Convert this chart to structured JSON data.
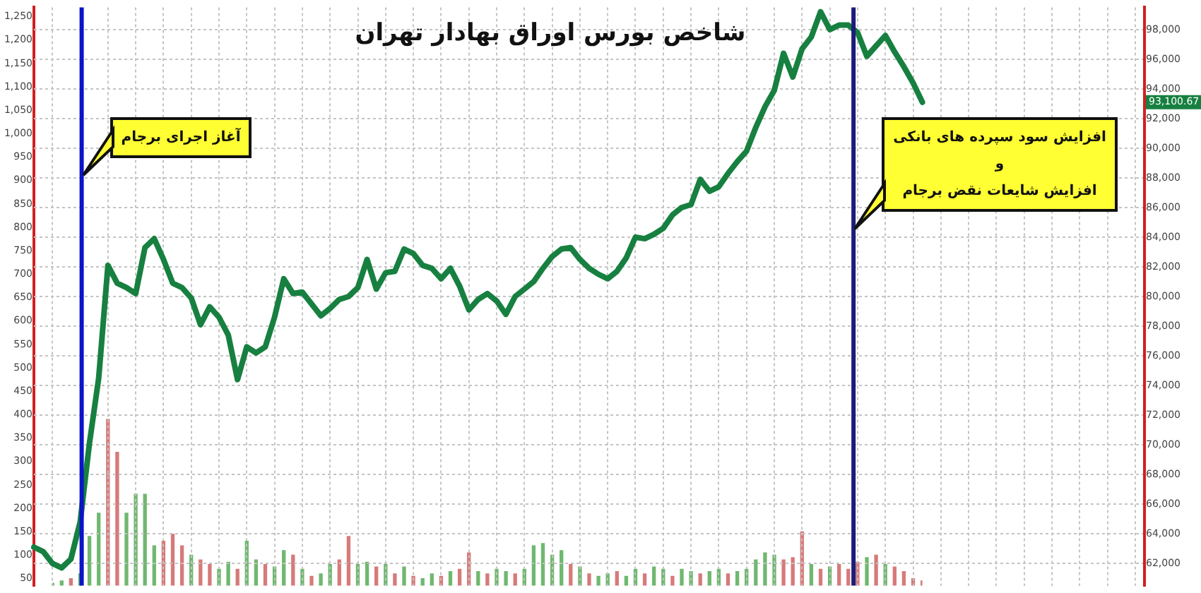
{
  "chart_data": [
    {
      "type": "line",
      "title": "شاخص بورس اوراق بهادار تهران",
      "categories": [
        null,
        null,
        null,
        null,
        null,
        null,
        null,
        null,
        null,
        null,
        null,
        null,
        null,
        null,
        null,
        null,
        null,
        null,
        null,
        null,
        null,
        null,
        null,
        null,
        null,
        null,
        null,
        null,
        null,
        null,
        null,
        null,
        null,
        null,
        null,
        null,
        null,
        null,
        null,
        null,
        null,
        null,
        null,
        null,
        null,
        null,
        null,
        null,
        null,
        null,
        null,
        null,
        null,
        null,
        null,
        null,
        null,
        null,
        null,
        null,
        null,
        null,
        null,
        null,
        null,
        null,
        null,
        null,
        null,
        null,
        null,
        null,
        null,
        null,
        null,
        null,
        null,
        null,
        null,
        null,
        null,
        null,
        null,
        null,
        null,
        null,
        null,
        null,
        null,
        null,
        null,
        null,
        null,
        null,
        null,
        null,
        null,
        null,
        null,
        null,
        null,
        null,
        null,
        null,
        null,
        null,
        null,
        null,
        null,
        null,
        null,
        null,
        null,
        null,
        null,
        null,
        null,
        null,
        null,
        null,
        null
      ],
      "ylim": [
        60500,
        99500
      ],
      "yticks": [
        {
          "value": 62000,
          "label": "62,000"
        },
        {
          "value": 64000,
          "label": "64,000"
        },
        {
          "value": 66000,
          "label": "66,000"
        },
        {
          "value": 68000,
          "label": "68,000"
        },
        {
          "value": 70000,
          "label": "70,000"
        },
        {
          "value": 72000,
          "label": "72,000"
        },
        {
          "value": 74000,
          "label": "74,000"
        },
        {
          "value": 76000,
          "label": "76,000"
        },
        {
          "value": 78000,
          "label": "78,000"
        },
        {
          "value": 80000,
          "label": "80,000"
        },
        {
          "value": 82000,
          "label": "82,000"
        },
        {
          "value": 84000,
          "label": "84,000"
        },
        {
          "value": 86000,
          "label": "86,000"
        },
        {
          "value": 88000,
          "label": "88,000"
        },
        {
          "value": 90000,
          "label": "90,000"
        },
        {
          "value": 92000,
          "label": "92,000"
        },
        {
          "value": 94000,
          "label": "94,000"
        },
        {
          "value": 96000,
          "label": "96,000"
        },
        {
          "value": 98000,
          "label": "98,000"
        }
      ],
      "tick_labels": "y",
      "grid": true,
      "series": [
        {
          "color": "#178040",
          "values": [
            63100,
            62800,
            62000,
            61700,
            62300,
            64800,
            70100,
            74500,
            82100,
            80900,
            80600,
            80200,
            83300,
            83900,
            82500,
            80900,
            80600,
            79900,
            78100,
            79300,
            78600,
            77400,
            74400,
            76600,
            76200,
            76600,
            78600,
            81200,
            80200,
            80300,
            79500,
            78700,
            79200,
            79800,
            80000,
            80600,
            82500,
            80500,
            81600,
            81700,
            83200,
            82900,
            82100,
            81900,
            81200,
            81900,
            80700,
            79100,
            79800,
            80200,
            79700,
            78800,
            80000,
            80500,
            81000,
            81900,
            82700,
            83200,
            83300,
            82500,
            81900,
            81500,
            81200,
            81700,
            82600,
            84000,
            83900,
            84200,
            84600,
            85500,
            86000,
            86200,
            87900,
            87100,
            87400,
            88300,
            89100,
            89800,
            91400,
            92800,
            93900,
            96400,
            94800,
            96700,
            97500,
            99200,
            98000,
            98300,
            98300,
            97800,
            96200,
            96900,
            97600,
            96500,
            95500,
            94400,
            93100,
            null,
            null,
            null,
            null,
            null,
            null,
            null,
            null,
            null,
            null,
            null,
            null,
            null,
            null,
            null,
            null,
            null,
            null,
            null,
            null,
            null,
            null,
            null,
            null
          ]
        }
      ],
      "annotations": [
        "آغاز اجرای برجام",
        "افزایش سود سپرده های بانکی\nو\nافزایش شایعات نقض برجام",
        "93,100.67"
      ]
    },
    {
      "type": "bar",
      "categories": [
        null,
        null,
        null,
        null,
        null,
        null,
        null,
        null,
        null,
        null,
        null,
        null,
        null,
        null,
        null,
        null,
        null,
        null,
        null,
        null,
        null,
        null,
        null,
        null,
        null,
        null,
        null,
        null,
        null,
        null,
        null,
        null,
        null,
        null,
        null,
        null,
        null,
        null,
        null,
        null,
        null,
        null,
        null,
        null,
        null,
        null,
        null,
        null,
        null,
        null,
        null,
        null,
        null,
        null,
        null,
        null,
        null,
        null,
        null,
        null,
        null,
        null,
        null,
        null,
        null,
        null,
        null,
        null,
        null,
        null,
        null,
        null,
        null,
        null,
        null,
        null,
        null,
        null,
        null,
        null,
        null,
        null,
        null,
        null,
        null,
        null,
        null,
        null,
        null,
        null,
        null,
        null,
        null,
        null,
        null
      ],
      "ylim": [
        35,
        1270
      ],
      "yticks": [
        50,
        100,
        150,
        200,
        250,
        300,
        350,
        400,
        450,
        500,
        550,
        600,
        650,
        700,
        750,
        800,
        850,
        900,
        950,
        {
          "value": 1000,
          "label": "1,000"
        },
        {
          "value": 1050,
          "label": "1,050"
        },
        {
          "value": 1100,
          "label": "1,100"
        },
        {
          "value": 1150,
          "label": "1,150"
        },
        {
          "value": 1200,
          "label": "1,200"
        },
        {
          "value": 1250,
          "label": "1,250"
        }
      ],
      "tick_labels": "y",
      "series": [
        {
          "values": [
            40,
            45,
            50,
            60,
            140,
            190,
            390,
            320,
            190,
            230,
            230,
            120,
            130,
            145,
            120,
            100,
            90,
            80,
            70,
            85,
            70,
            130,
            90,
            80,
            75,
            110,
            100,
            70,
            55,
            60,
            80,
            90,
            140,
            80,
            85,
            75,
            80,
            60,
            75,
            55,
            50,
            60,
            55,
            65,
            70,
            105,
            65,
            60,
            70,
            65,
            60,
            70,
            120,
            125,
            100,
            110,
            80,
            75,
            60,
            55,
            60,
            65,
            55,
            70,
            60,
            75,
            70,
            55,
            70,
            65,
            60,
            65,
            70,
            60,
            65,
            70,
            90,
            105,
            100,
            90,
            95,
            150,
            80,
            70,
            75,
            80,
            70,
            85,
            95,
            100,
            80,
            75,
            65,
            50,
            45
          ],
          "colors": [
            "#6fb86f",
            "#6fb86f",
            "#d77a7a",
            "#6fb86f",
            "#6fb86f",
            "#6fb86f",
            "#d77a7a",
            "#d77a7a",
            "#6fb86f",
            "#6fb86f",
            "#6fb86f",
            "#6fb86f",
            "#d77a7a",
            "#d77a7a",
            "#d77a7a",
            "#6fb86f",
            "#d77a7a",
            "#d77a7a",
            "#6fb86f",
            "#6fb86f",
            "#d77a7a",
            "#6fb86f",
            "#6fb86f",
            "#d77a7a",
            "#6fb86f",
            "#6fb86f",
            "#d77a7a",
            "#6fb86f",
            "#d77a7a",
            "#6fb86f",
            "#6fb86f",
            "#d77a7a",
            "#d77a7a",
            "#6fb86f",
            "#6fb86f",
            "#d77a7a",
            "#6fb86f",
            "#d77a7a",
            "#6fb86f",
            "#d77a7a",
            "#6fb86f",
            "#6fb86f",
            "#d77a7a",
            "#6fb86f",
            "#d77a7a",
            "#d77a7a",
            "#6fb86f",
            "#d77a7a",
            "#6fb86f",
            "#6fb86f",
            "#d77a7a",
            "#6fb86f",
            "#6fb86f",
            "#6fb86f",
            "#6fb86f",
            "#6fb86f",
            "#d77a7a",
            "#6fb86f",
            "#d77a7a",
            "#6fb86f",
            "#6fb86f",
            "#d77a7a",
            "#6fb86f",
            "#6fb86f",
            "#d77a7a",
            "#6fb86f",
            "#6fb86f",
            "#d77a7a",
            "#6fb86f",
            "#6fb86f",
            "#d77a7a",
            "#6fb86f",
            "#6fb86f",
            "#d77a7a",
            "#6fb86f",
            "#6fb86f",
            "#6fb86f",
            "#6fb86f",
            "#6fb86f",
            "#d77a7a",
            "#d77a7a",
            "#d77a7a",
            "#6fb86f",
            "#d77a7a",
            "#6fb86f",
            "#d77a7a",
            "#d77a7a",
            "#d77a7a",
            "#6fb86f",
            "#d77a7a",
            "#6fb86f",
            "#d77a7a",
            "#d77a7a",
            "#d77a7a",
            "#d77a7a"
          ]
        }
      ]
    }
  ]
}
